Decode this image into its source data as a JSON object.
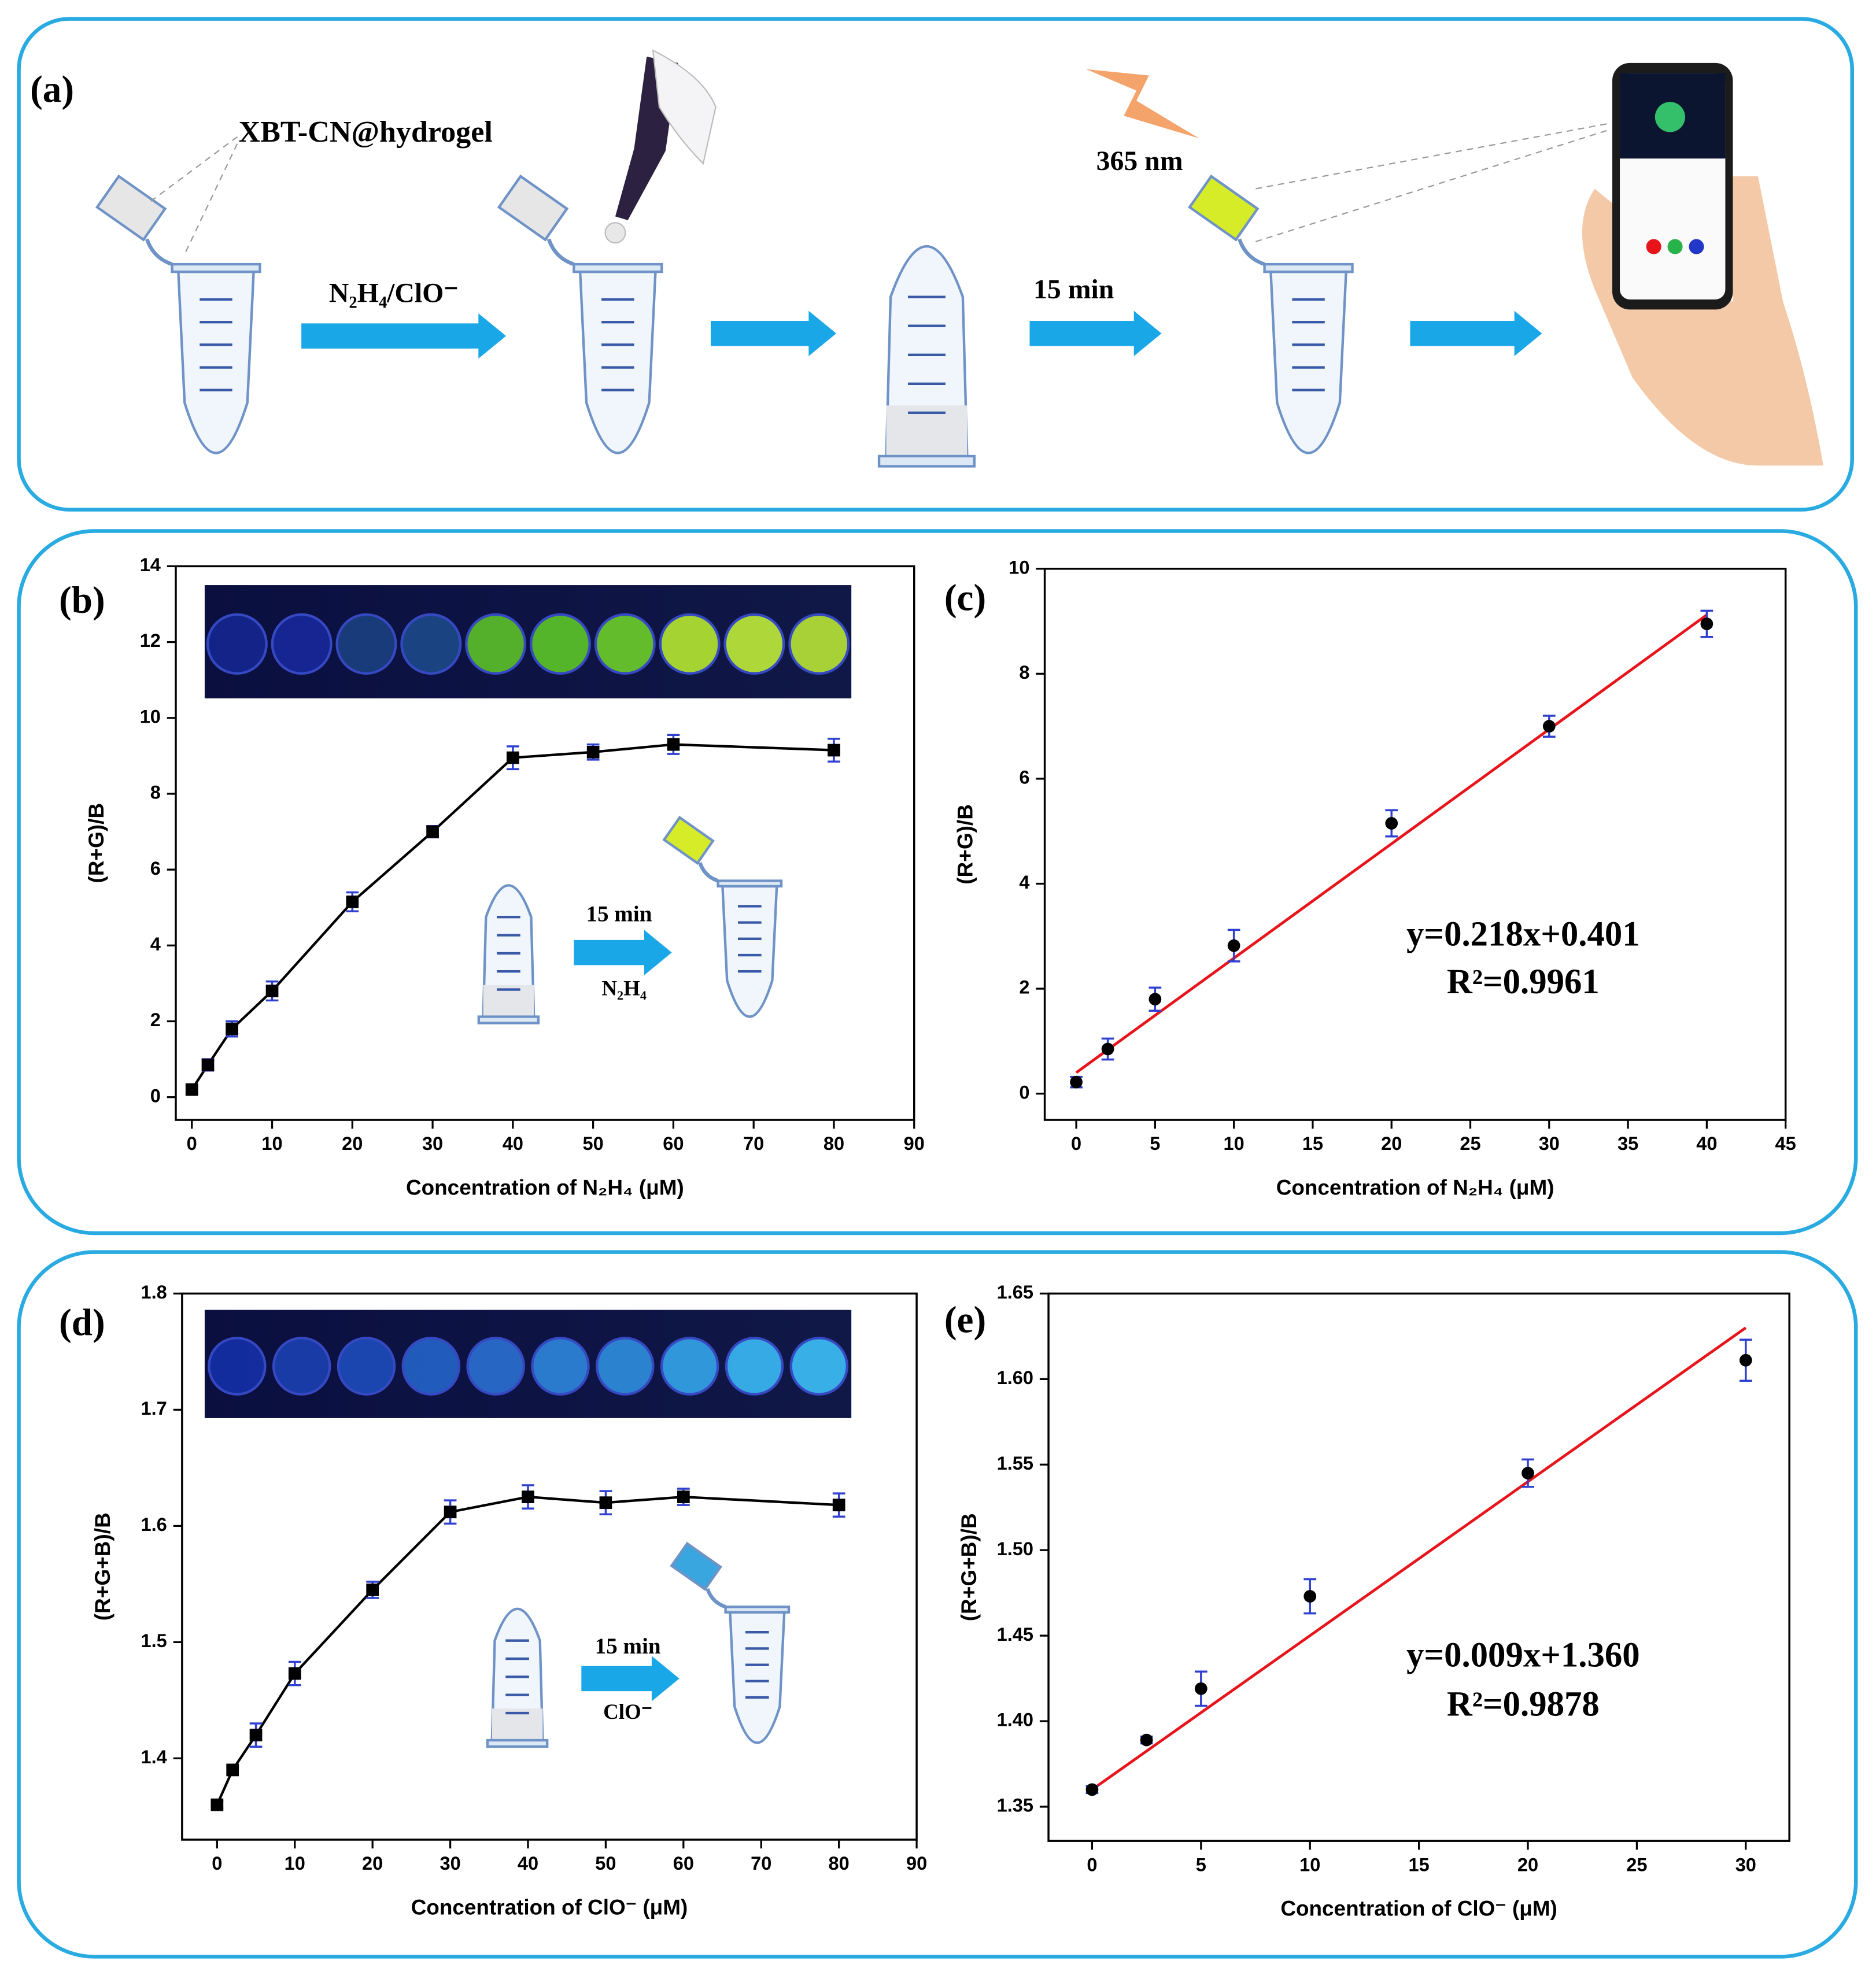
{
  "diagram": {
    "label": "(a)",
    "material": "XBT-CN@hydrogel",
    "reagent": "N₂H₄/ClO⁻",
    "wavelength": "365 nm",
    "time": "15 min"
  },
  "chart_data": [
    {
      "type": "line",
      "label": "(b)",
      "xlabel": "Concentration of N₂H₄ (μM)",
      "ylabel": "(R+G)/B",
      "x": [
        0,
        2,
        5,
        10,
        20,
        30,
        40,
        50,
        60,
        80
      ],
      "series": [
        {
          "values": [
            0.2,
            0.85,
            1.8,
            2.8,
            5.15,
            7.0,
            8.95,
            9.1,
            9.3,
            9.15
          ],
          "errors": [
            0.1,
            0.15,
            0.2,
            0.25,
            0.25,
            0.15,
            0.3,
            0.2,
            0.25,
            0.3
          ],
          "color": "#000000",
          "error_color": "#2f3fd0"
        }
      ],
      "marker": "square",
      "xlim": [
        -2,
        90
      ],
      "ylim": [
        -0.6,
        14
      ],
      "xticks": [
        0,
        10,
        20,
        30,
        40,
        50,
        60,
        70,
        80,
        90
      ],
      "yticks": [
        0,
        2,
        4,
        6,
        8,
        10,
        12,
        14
      ],
      "annotations": [
        "15 min",
        "N₂H₄"
      ]
    },
    {
      "type": "scatter",
      "label": "(c)",
      "xlabel": "Concentration of N₂H₄ (μM)",
      "ylabel": "(R+G)/B",
      "x": [
        0,
        2,
        5,
        10,
        20,
        30,
        40
      ],
      "series": [
        {
          "values": [
            0.22,
            0.85,
            1.8,
            2.82,
            5.15,
            7.0,
            8.95
          ],
          "errors": [
            0.1,
            0.2,
            0.22,
            0.3,
            0.25,
            0.2,
            0.25
          ],
          "color": "#000000",
          "error_color": "#2f3fd0"
        }
      ],
      "fit": {
        "x": [
          0,
          40
        ],
        "values": [
          0.401,
          9.121
        ],
        "color": "#e8141b"
      },
      "marker": "circle",
      "xlim": [
        -2,
        45
      ],
      "ylim": [
        -0.5,
        10
      ],
      "xticks": [
        0,
        5,
        10,
        15,
        20,
        25,
        30,
        35,
        40,
        45
      ],
      "yticks": [
        0,
        2,
        4,
        6,
        8,
        10
      ],
      "annotations": [
        "y=0.218x+0.401",
        "R²=0.9961"
      ]
    },
    {
      "type": "line",
      "label": "(d)",
      "xlabel": "Concentration of ClO⁻ (μM)",
      "ylabel": "(R+G+B)/B",
      "x": [
        0,
        2,
        5,
        10,
        20,
        30,
        40,
        50,
        60,
        80
      ],
      "series": [
        {
          "values": [
            1.36,
            1.39,
            1.42,
            1.473,
            1.545,
            1.612,
            1.625,
            1.62,
            1.625,
            1.618
          ],
          "errors": [
            0.003,
            0.003,
            0.01,
            0.01,
            0.007,
            0.01,
            0.01,
            0.01,
            0.007,
            0.01
          ],
          "color": "#000000",
          "error_color": "#2f3fd0"
        }
      ],
      "marker": "square",
      "xlim": [
        -4.5,
        90
      ],
      "ylim": [
        1.33,
        1.8
      ],
      "xticks": [
        0,
        10,
        20,
        30,
        40,
        50,
        60,
        70,
        80,
        90
      ],
      "yticks": [
        1.4,
        1.5,
        1.6,
        1.7,
        1.8
      ],
      "annotations": [
        "15 min",
        "ClO⁻"
      ]
    },
    {
      "type": "scatter",
      "label": "(e)",
      "xlabel": "Concentration of ClO⁻ (μM)",
      "ylabel": "(R+G+B)/B",
      "x": [
        0,
        2.5,
        5,
        10,
        20,
        30
      ],
      "series": [
        {
          "values": [
            1.36,
            1.389,
            1.419,
            1.473,
            1.545,
            1.611
          ],
          "errors": [
            0.002,
            0.002,
            0.01,
            0.01,
            0.008,
            0.012
          ],
          "color": "#000000",
          "error_color": "#2f3fd0"
        }
      ],
      "fit": {
        "x": [
          0,
          30
        ],
        "values": [
          1.36,
          1.63
        ],
        "color": "#e8141b"
      },
      "marker": "circle",
      "xlim": [
        -2,
        32
      ],
      "ylim": [
        1.33,
        1.65
      ],
      "xticks": [
        0,
        5,
        10,
        15,
        20,
        25,
        30
      ],
      "yticks": [
        1.35,
        {
          "value": 1.4,
          "label": "1.40"
        },
        1.45,
        {
          "value": 1.5,
          "label": "1.50"
        },
        1.55,
        {
          "value": 1.6,
          "label": "1.60"
        },
        1.65
      ],
      "annotations": [
        "y=0.009x+1.360",
        "R²=0.9878"
      ]
    }
  ]
}
